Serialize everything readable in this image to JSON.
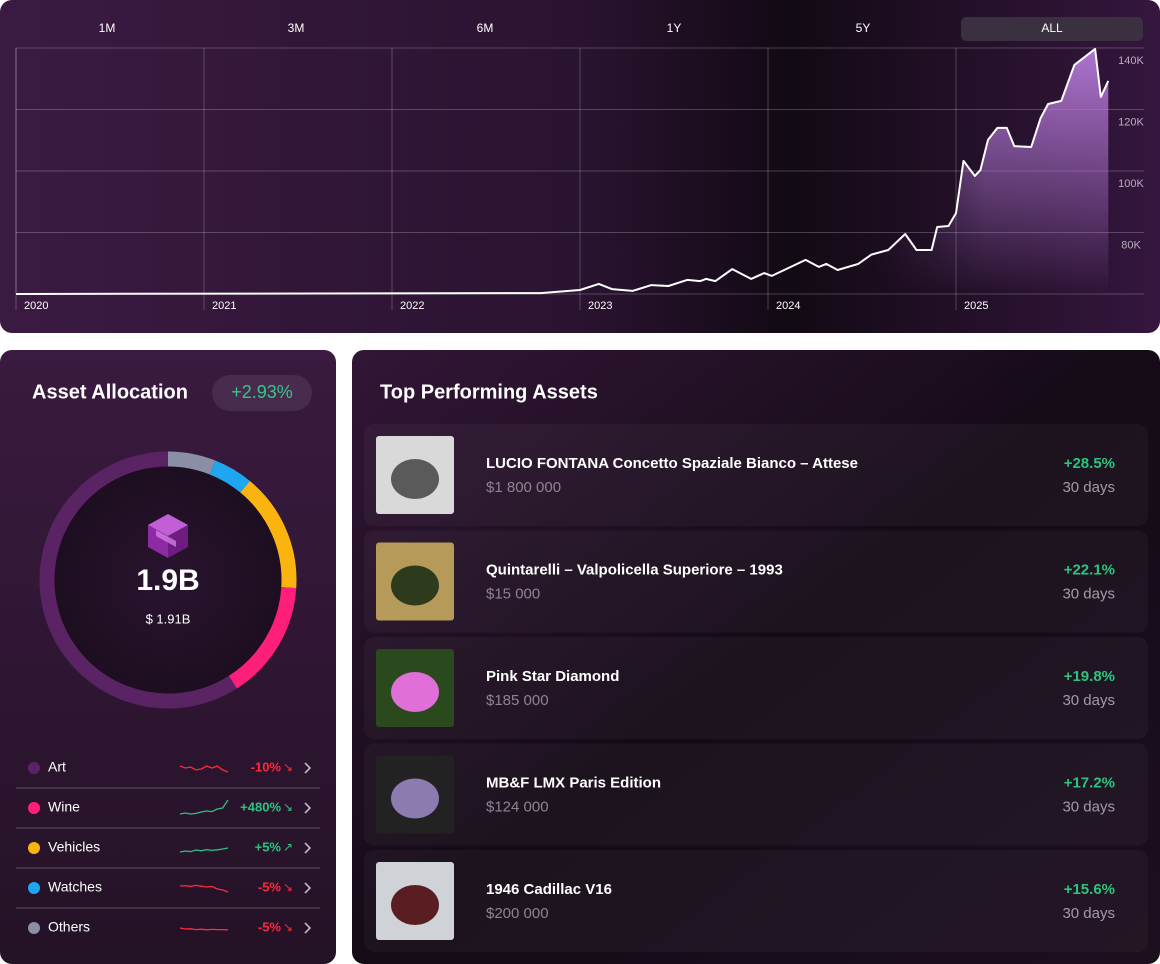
{
  "timeframes": {
    "items": [
      "1M",
      "3M",
      "6M",
      "1Y",
      "5Y",
      "ALL"
    ],
    "selected": "ALL"
  },
  "chart_data": {
    "type": "area",
    "x": [
      2020,
      2022.79,
      2023.0,
      2023.1,
      2023.17,
      2023.28,
      2023.38,
      2023.47,
      2023.57,
      2023.64,
      2023.67,
      2023.72,
      2023.81,
      2023.91,
      2023.98,
      2024.02,
      2024.2,
      2024.27,
      2024.31,
      2024.37,
      2024.48,
      2024.55,
      2024.64,
      2024.73,
      2024.79,
      2024.87,
      2024.9,
      2024.96,
      2025.0,
      2025.04,
      2025.1,
      2025.13,
      2025.17,
      2025.22,
      2025.27,
      2025.31,
      2025.4,
      2025.45,
      2025.49,
      2025.56,
      2025.63,
      2025.74,
      2025.77,
      2025.81
    ],
    "values": [
      60000,
      60300,
      61300,
      63300,
      61600,
      61000,
      62900,
      62600,
      64600,
      64200,
      64900,
      64200,
      68100,
      64900,
      66800,
      65900,
      71100,
      68800,
      69800,
      67800,
      69800,
      72800,
      74300,
      79500,
      74300,
      74300,
      81800,
      82100,
      86300,
      103300,
      98400,
      100300,
      110100,
      114000,
      114000,
      108100,
      107800,
      117200,
      121800,
      122800,
      134500,
      139700,
      124100,
      129300
    ],
    "color": "#b57ad8",
    "xlim": [
      2020,
      2026
    ],
    "xticks": [
      2020,
      2021,
      2022,
      2023,
      2024,
      2025
    ],
    "ylim": [
      60000,
      140000
    ],
    "yticks": [
      {
        "value": 80000,
        "label": "80K"
      },
      {
        "value": 100000,
        "label": "100K"
      },
      {
        "value": 120000,
        "label": "120K"
      },
      {
        "value": 140000,
        "label": "140K"
      }
    ],
    "grid": true
  },
  "allocation": {
    "title": "Asset Allocation",
    "change": "+2.93%",
    "total": "1.9B",
    "total_exact": "$ 1.91B",
    "items": [
      {
        "name": "Art",
        "color": "#5a2364",
        "share": 59,
        "change": "-10%",
        "arrow": "↘",
        "trend": [
          6,
          5,
          5.5,
          4,
          4.5,
          6,
          5,
          6,
          4,
          3
        ]
      },
      {
        "name": "Wine",
        "color": "#ff1f7a",
        "share": 15,
        "change": "+480%",
        "arrow": "↘",
        "trend": [
          2,
          2.5,
          2,
          2.3,
          3,
          3.5,
          3.2,
          4.5,
          5,
          9
        ]
      },
      {
        "name": "Vehicles",
        "color": "#fbb40f",
        "share": 15,
        "change": "+5%",
        "arrow": "↗",
        "trend": [
          3,
          3.5,
          3.2,
          4,
          3.6,
          4.2,
          3.8,
          4.1,
          4.5,
          5
        ]
      },
      {
        "name": "Watches",
        "color": "#1ea7f0",
        "share": 5,
        "change": "-5%",
        "arrow": "↘",
        "trend": [
          6,
          6.2,
          5.8,
          6.3,
          5.9,
          5.5,
          5.8,
          4.5,
          4,
          3
        ]
      },
      {
        "name": "Others",
        "color": "#8a8fa6",
        "share": 6,
        "change": "-5%",
        "arrow": "↘",
        "trend": [
          5,
          4.5,
          4.6,
          4.2,
          4.4,
          4.1,
          4.3,
          4.2,
          4.2,
          4.1
        ]
      }
    ]
  },
  "top_assets": {
    "title": "Top Performing Assets",
    "items": [
      {
        "name": "LUCIO FONTANA Concetto Spaziale Bianco – Attese",
        "price": "$1 800 000",
        "change": "+28.5%",
        "period": "30 days"
      },
      {
        "name": "Quintarelli – Valpolicella Superiore – 1993",
        "price": "$15 000",
        "change": "+22.1%",
        "period": "30 days"
      },
      {
        "name": "Pink Star Diamond",
        "price": "$185 000",
        "change": "+19.8%",
        "period": "30 days"
      },
      {
        "name": "MB&F LMX Paris Edition",
        "price": "$124 000",
        "change": "+17.2%",
        "period": "30 days"
      },
      {
        "name": "1946 Cadillac V16",
        "price": "$200 000",
        "change": "+15.6%",
        "period": "30 days"
      }
    ]
  }
}
